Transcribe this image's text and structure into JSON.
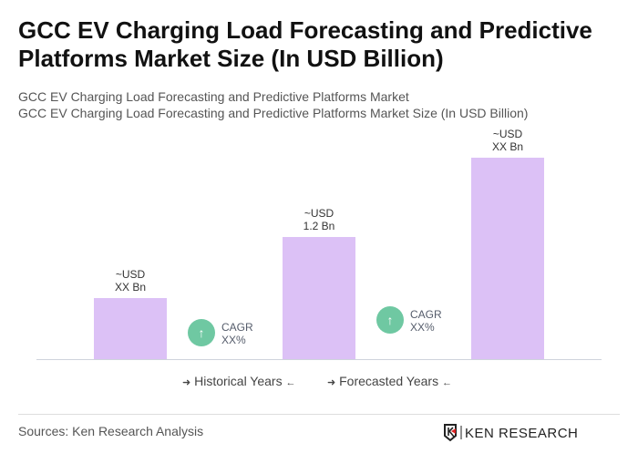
{
  "title": "GCC EV Charging Load Forecasting and Predictive Platforms Market Size (In USD Billion)",
  "subtitle1": "GCC EV Charging Load Forecasting and Predictive Platforms Market",
  "subtitle2": "GCC EV Charging Load Forecasting and Predictive Platforms Market Size (In USD Billion)",
  "chart_data": {
    "type": "bar",
    "categories": [
      "",
      "",
      ""
    ],
    "values": [
      0.6,
      1.2,
      1.97
    ],
    "data_labels": [
      {
        "l1": "~USD",
        "l2": "XX Bn"
      },
      {
        "l1": "~USD",
        "l2": "1.2 Bn"
      },
      {
        "l1": "~USD",
        "l2": "XX Bn"
      }
    ],
    "bar_color": "#dcc1f6",
    "cagr": [
      {
        "l1": "CAGR",
        "l2": "XX%"
      },
      {
        "l1": "CAGR",
        "l2": "XX%"
      }
    ],
    "cagr_color": "#6fc8a2",
    "legend": {
      "historical": "Historical Years",
      "forecasted": "Forecasted Years"
    }
  },
  "footer": {
    "source": "Sources: Ken Research Analysis",
    "logo": "KEN RESEARCH"
  }
}
